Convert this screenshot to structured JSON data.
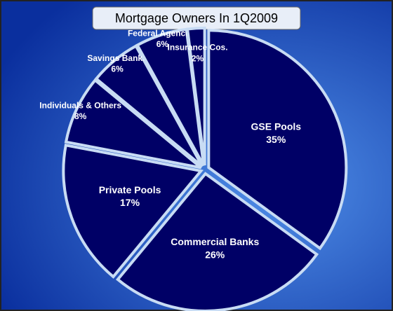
{
  "chart_data": {
    "type": "pie",
    "title": "Mortgage Owners In 1Q2009",
    "categories": [
      "GSE Pools",
      "Commercial Banks",
      "Private Pools",
      "Individuals & Others",
      "Savings Banks",
      "Federal Agencies",
      "Insurance Cos."
    ],
    "values": [
      35,
      26,
      17,
      8,
      6,
      6,
      2
    ],
    "value_labels": [
      "35%",
      "26%",
      "17%",
      "8%",
      "6%",
      "6%",
      "2%"
    ],
    "color": "#000066"
  }
}
